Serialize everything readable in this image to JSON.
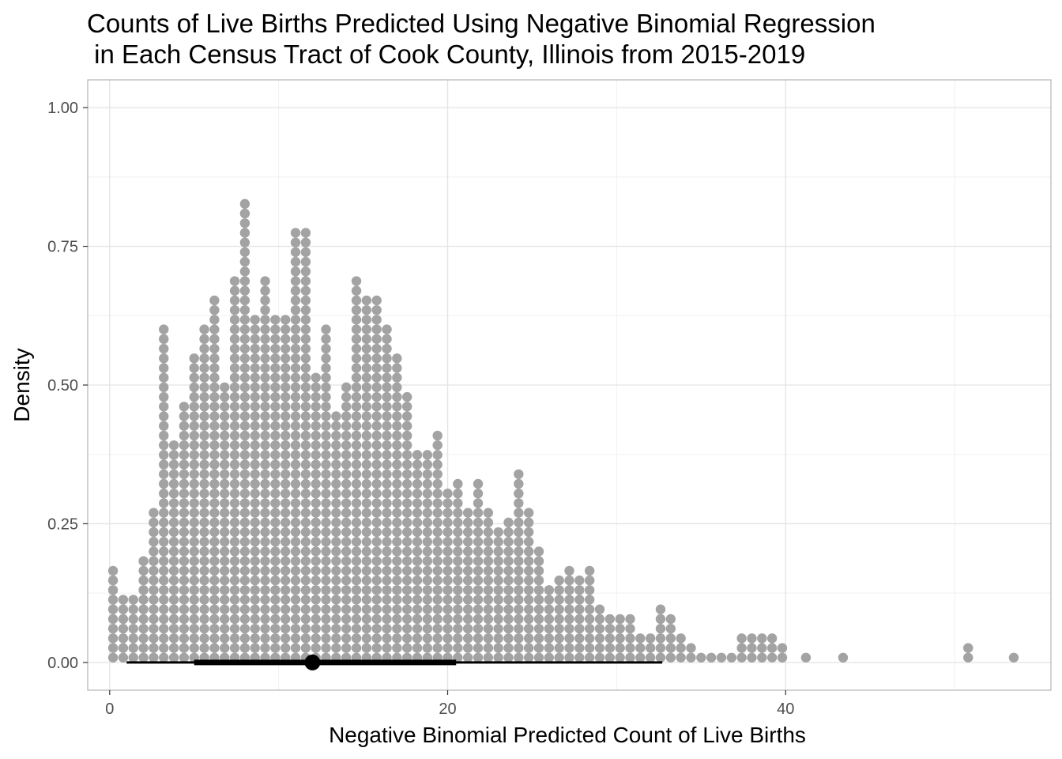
{
  "chart_data": {
    "type": "dotplot",
    "title_lines": [
      "Counts of Live Births Predicted Using Negative Binomial Regression",
      " in Each Census Tract of Cook County, Illinois from 2015-2019"
    ],
    "xlabel": "Negative Binomial Predicted Count of Live Births",
    "ylabel": "Density",
    "xlim": [
      -1.3,
      55.7
    ],
    "ylim": [
      -0.05,
      1.05
    ],
    "x_ticks": [
      0,
      20,
      40
    ],
    "x_tick_labels": [
      "0",
      "20",
      "40"
    ],
    "y_ticks": [
      0,
      0.25,
      0.5,
      0.75,
      1.0
    ],
    "y_tick_labels": [
      "0.00",
      "0.25",
      "0.50",
      "0.75",
      "1.00"
    ],
    "grid": true,
    "dot_color": "#a3a3a3",
    "interval_color": "#000000",
    "dot_step_density": 0.0174,
    "dot_columns": {
      "x": [
        0.2,
        0.8,
        1.4,
        2.0,
        2.6,
        3.2,
        3.8,
        4.4,
        5.0,
        5.6,
        6.2,
        6.8,
        7.4,
        8.0,
        8.6,
        9.2,
        9.8,
        10.4,
        11.0,
        11.6,
        12.2,
        12.8,
        13.4,
        14.0,
        14.6,
        15.2,
        15.8,
        16.4,
        17.0,
        17.6,
        18.2,
        18.8,
        19.4,
        20.0,
        20.6,
        21.2,
        21.8,
        22.4,
        23.0,
        23.6,
        24.2,
        24.8,
        25.4,
        26.0,
        26.6,
        27.2,
        27.8,
        28.4,
        29.0,
        29.6,
        30.2,
        30.8,
        31.4,
        32.0,
        32.6,
        33.2,
        33.8,
        34.4,
        35.0,
        35.6,
        36.2,
        36.8,
        37.4,
        38.0,
        38.6,
        39.2,
        39.8,
        41.2,
        43.4,
        50.8,
        53.5
      ],
      "counts": [
        10,
        7,
        7,
        11,
        16,
        35,
        23,
        27,
        32,
        35,
        38,
        29,
        40,
        48,
        36,
        40,
        36,
        36,
        45,
        45,
        30,
        35,
        26,
        29,
        40,
        38,
        38,
        35,
        32,
        28,
        22,
        22,
        24,
        18,
        19,
        16,
        19,
        16,
        14,
        15,
        20,
        16,
        12,
        8,
        9,
        10,
        9,
        10,
        6,
        5,
        5,
        5,
        3,
        3,
        6,
        5,
        3,
        2,
        1,
        1,
        1,
        1,
        3,
        3,
        3,
        3,
        2,
        1,
        1,
        2,
        1
      ]
    },
    "summary": {
      "point": 12.0,
      "inner_interval": [
        5.0,
        20.5
      ],
      "outer_interval": [
        1.0,
        32.7
      ]
    }
  }
}
